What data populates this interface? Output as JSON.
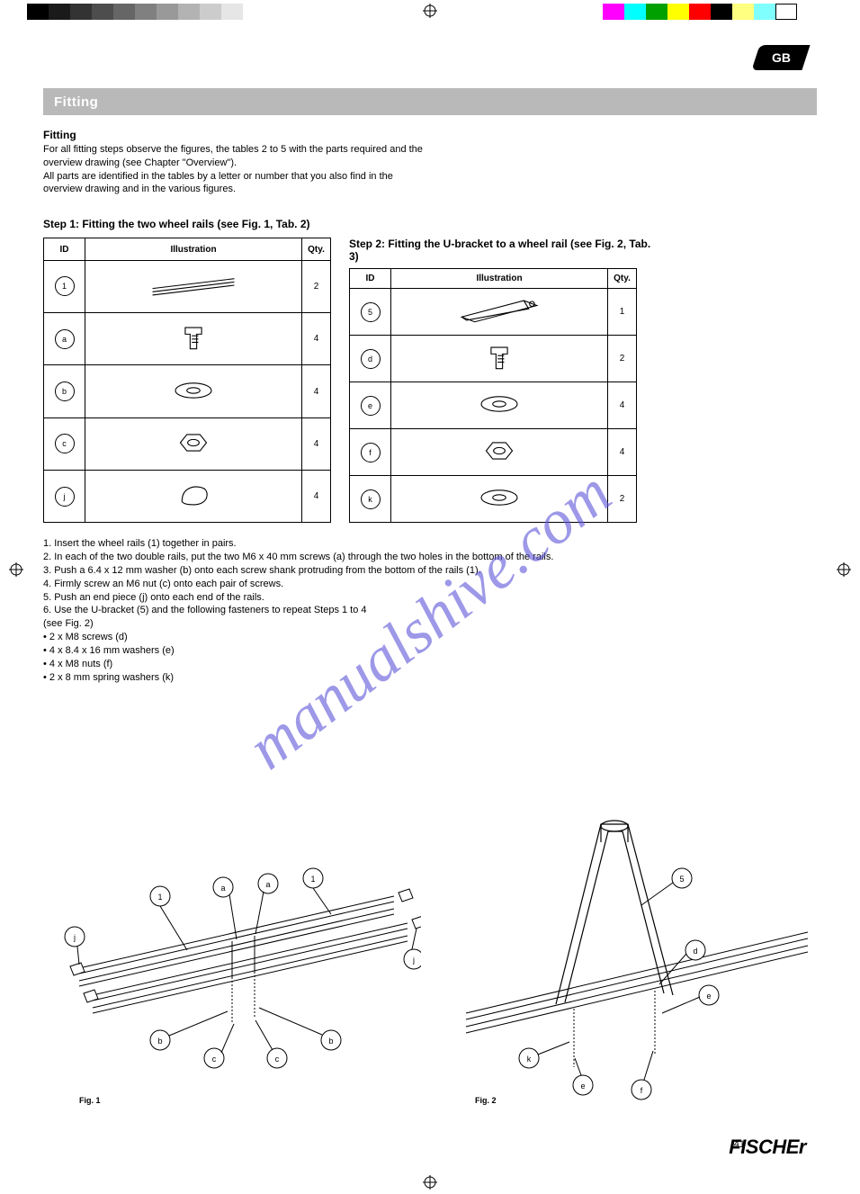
{
  "page": {
    "lang_tab": "GB",
    "title": "Fitting",
    "page_number": "41",
    "brand": "FISCHEr"
  },
  "intro": {
    "heading": "Fitting",
    "lines": [
      "For all fitting steps observe the figures, the tables 2 to 5 with the parts required and the",
      "overview drawing (see Chapter \"Overview\").",
      "All parts are identified in the tables by a letter or number that you also find in the",
      "overview drawing and in the various figures."
    ]
  },
  "step1": {
    "title": "Step 1: Fitting the two wheel rails (see Fig. 1, Tab. 2)",
    "table_headers": {
      "id": "ID",
      "illustration": "Illustration",
      "qty": "Qty."
    },
    "parts": [
      {
        "id": "1",
        "qty": "2",
        "svg": "rail"
      },
      {
        "id": "a",
        "qty": "4",
        "svg": "bolt"
      },
      {
        "id": "b",
        "qty": "4",
        "svg": "washer"
      },
      {
        "id": "c",
        "qty": "4",
        "svg": "nut"
      },
      {
        "id": "j",
        "qty": "4",
        "svg": "endcap"
      }
    ]
  },
  "step2": {
    "title": "Step 2: Fitting the U-bracket to a wheel rail (see Fig. 2, Tab. 3)",
    "table_headers": {
      "id": "ID",
      "illustration": "Illustration",
      "qty": "Qty."
    },
    "parts": [
      {
        "id": "5",
        "qty": "1",
        "svg": "ubracket"
      },
      {
        "id": "d",
        "qty": "2",
        "svg": "bolt"
      },
      {
        "id": "e",
        "qty": "4",
        "svg": "washer"
      },
      {
        "id": "f",
        "qty": "4",
        "svg": "nut"
      },
      {
        "id": "k",
        "qty": "2",
        "svg": "washer"
      }
    ]
  },
  "steps_text": [
    "1. Insert the wheel rails (1) together in pairs.",
    "2. In each of the two double rails, put the two M6 x 40 mm screws (a) through the two holes in the bottom of the rails.",
    "3. Push a 6.4 x 12 mm washer (b) onto each screw shank protruding from the bottom of the rails (1).",
    "4. Firmly screw an M6 nut (c) onto each pair of screws.",
    "5. Push an end piece (j) onto each end of the rails.",
    "6. Use the U-bracket (5) and the following fasteners to repeat Steps 1 to 4",
    "(see Fig. 2)",
    "• 2 x M8 screws (d)",
    "• 4 x 8.4 x 16 mm washers (e)",
    "• 4 x M8 nuts (f)",
    "• 2 x 8 mm spring washers (k)"
  ],
  "figures": {
    "fig1": {
      "label": "Fig. 1",
      "callouts": [
        "1",
        "1",
        "a",
        "a",
        "b",
        "b",
        "c",
        "c",
        "j",
        "j"
      ]
    },
    "fig2": {
      "label": "Fig. 2",
      "callouts": [
        "5",
        "d",
        "e",
        "f",
        "k",
        "e",
        "f"
      ]
    }
  },
  "watermark": "manualshive.com",
  "print_marks": {
    "grayscale": [
      "#000000",
      "#1a1a1a",
      "#333333",
      "#4d4d4d",
      "#666666",
      "#808080",
      "#999999",
      "#b3b3b3",
      "#cccccc",
      "#e6e6e6"
    ],
    "colors": [
      "#ff00ff",
      "#00ffff",
      "#00a000",
      "#ffff00",
      "#ff0000",
      "#000000",
      "#ffff80",
      "#80ffff",
      "#ffffff"
    ]
  }
}
